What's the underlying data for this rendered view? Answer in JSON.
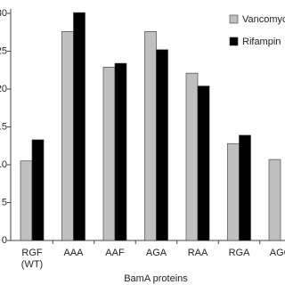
{
  "chart_data": {
    "type": "bar",
    "xlabel": "BamA proteins",
    "categories": [
      "RGF (WT)",
      "AAA",
      "AAF",
      "AGA",
      "RAA",
      "RGA",
      "AGG"
    ],
    "series": [
      {
        "name": "Vancomycin",
        "color": "#c0c0c0",
        "values": [
          10.5,
          27.6,
          22.9,
          27.6,
          22.1,
          12.8,
          10.7
        ]
      },
      {
        "name": "Rifampin",
        "color": "#000000",
        "values": [
          13.3,
          30.1,
          23.4,
          25.2,
          20.4,
          13.9,
          null
        ]
      }
    ],
    "ylim": [
      0,
      30
    ],
    "yticks": [
      0,
      5,
      10,
      15,
      20,
      25,
      30
    ],
    "legend": "top-right"
  }
}
